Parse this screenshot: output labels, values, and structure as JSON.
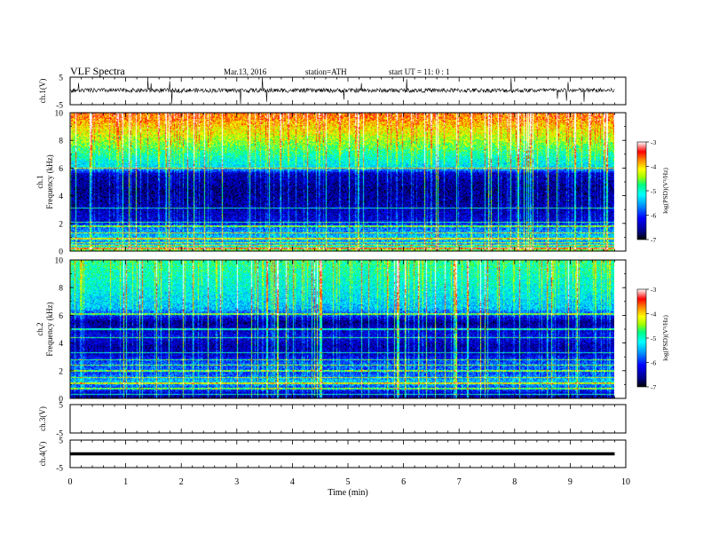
{
  "header": {
    "title": "VLF Spectra",
    "date": "Mar.13, 2016",
    "station": "station=ATH",
    "start_ut": "start  UT =  11: 0  : 1"
  },
  "colors": {
    "axis": "#000000",
    "trace": "#000000",
    "colormap": [
      "#000000",
      "#000080",
      "#0000ff",
      "#00a0ff",
      "#00ffff",
      "#00ff80",
      "#a0ff00",
      "#ffff00",
      "#ff8000",
      "#ff0000",
      "#ffffff"
    ]
  },
  "chart_data": [
    {
      "type": "line",
      "panel": "ch1-waveform",
      "ylabel": "ch.1(V)",
      "ylim": [
        -5,
        5
      ],
      "yticks": [
        "5",
        "-5"
      ],
      "xlim": [
        0,
        10
      ],
      "series": [
        {
          "x": [
            0,
            9.8
          ],
          "y": [
            0.2,
            0.2
          ]
        }
      ]
    },
    {
      "type": "heatmap",
      "panel": "ch1-spectrogram",
      "ylabel_top": "ch.1",
      "ylabel": "Frequency  (kHz)",
      "ylim": [
        0,
        10
      ],
      "yticks": [
        "0",
        "2",
        "4",
        "6",
        "8",
        "10"
      ],
      "xlim": [
        0,
        10
      ],
      "data_xmax": 9.8,
      "colorbar": {
        "label": "log(PSD)(V²/Hz)",
        "range": [
          -7,
          -3
        ],
        "ticks": [
          "-3",
          "-4",
          "-5",
          "-6",
          "-7"
        ]
      },
      "profile": [
        {
          "f": 0.0,
          "v": -4.5
        },
        {
          "f": 0.6,
          "v": -5.6
        },
        {
          "f": 1.0,
          "v": -5.4
        },
        {
          "f": 1.6,
          "v": -5.7
        },
        {
          "f": 2.2,
          "v": -6.3
        },
        {
          "f": 3.2,
          "v": -6.5
        },
        {
          "f": 4.5,
          "v": -6.6
        },
        {
          "f": 5.6,
          "v": -6.4
        },
        {
          "f": 6.0,
          "v": -5.3
        },
        {
          "f": 7.0,
          "v": -4.9
        },
        {
          "f": 8.0,
          "v": -4.4
        },
        {
          "f": 9.0,
          "v": -4.0
        },
        {
          "f": 10.0,
          "v": -3.6
        }
      ],
      "lines_khz": [
        0.2,
        0.4,
        0.6,
        0.9,
        1.3,
        1.8,
        2.1,
        3.1,
        6.0
      ]
    },
    {
      "type": "heatmap",
      "panel": "ch2-spectrogram",
      "ylabel_top": "ch.2",
      "ylabel": "Frequency  (kHz)",
      "ylim": [
        0,
        10
      ],
      "yticks": [
        "0",
        "2",
        "4",
        "6",
        "8",
        "10"
      ],
      "xlim": [
        0,
        10
      ],
      "data_xmax": 9.8,
      "colorbar": {
        "label": "log(PSD)(V²/Hz)",
        "range": [
          -7,
          -3
        ],
        "ticks": [
          "-3",
          "-4",
          "-5",
          "-6",
          "-7"
        ]
      },
      "profile": [
        {
          "f": 0.0,
          "v": -6.7
        },
        {
          "f": 0.5,
          "v": -6.2
        },
        {
          "f": 1.2,
          "v": -5.4
        },
        {
          "f": 1.8,
          "v": -5.9
        },
        {
          "f": 2.5,
          "v": -5.8
        },
        {
          "f": 3.2,
          "v": -6.4
        },
        {
          "f": 3.8,
          "v": -6.5
        },
        {
          "f": 4.5,
          "v": -6.2
        },
        {
          "f": 5.5,
          "v": -6.6
        },
        {
          "f": 6.5,
          "v": -5.4
        },
        {
          "f": 8.0,
          "v": -5.1
        },
        {
          "f": 10.0,
          "v": -4.8
        }
      ],
      "lines_khz": [
        0.3,
        0.7,
        1.1,
        1.5,
        2.0,
        2.4,
        2.8,
        3.3,
        4.4,
        5.0,
        6.1
      ]
    },
    {
      "type": "line",
      "panel": "ch3-waveform",
      "ylabel": "ch.3(V)",
      "ylim": [
        -5,
        5
      ],
      "yticks": [
        "5",
        "-5"
      ],
      "xlim": [
        0,
        10
      ],
      "series": []
    },
    {
      "type": "line",
      "panel": "ch4-waveform",
      "ylabel": "ch.4(V)",
      "ylim": [
        -5,
        5
      ],
      "yticks": [
        "5",
        "-5"
      ],
      "xlim": [
        0,
        10
      ],
      "series": [
        {
          "x": [
            0,
            9.8
          ],
          "y": [
            0.0,
            0.0
          ]
        }
      ]
    }
  ],
  "xaxis": {
    "label": "Time  (min)",
    "ticks": [
      "0",
      "1",
      "2",
      "3",
      "4",
      "5",
      "6",
      "7",
      "8",
      "9",
      "10"
    ]
  }
}
